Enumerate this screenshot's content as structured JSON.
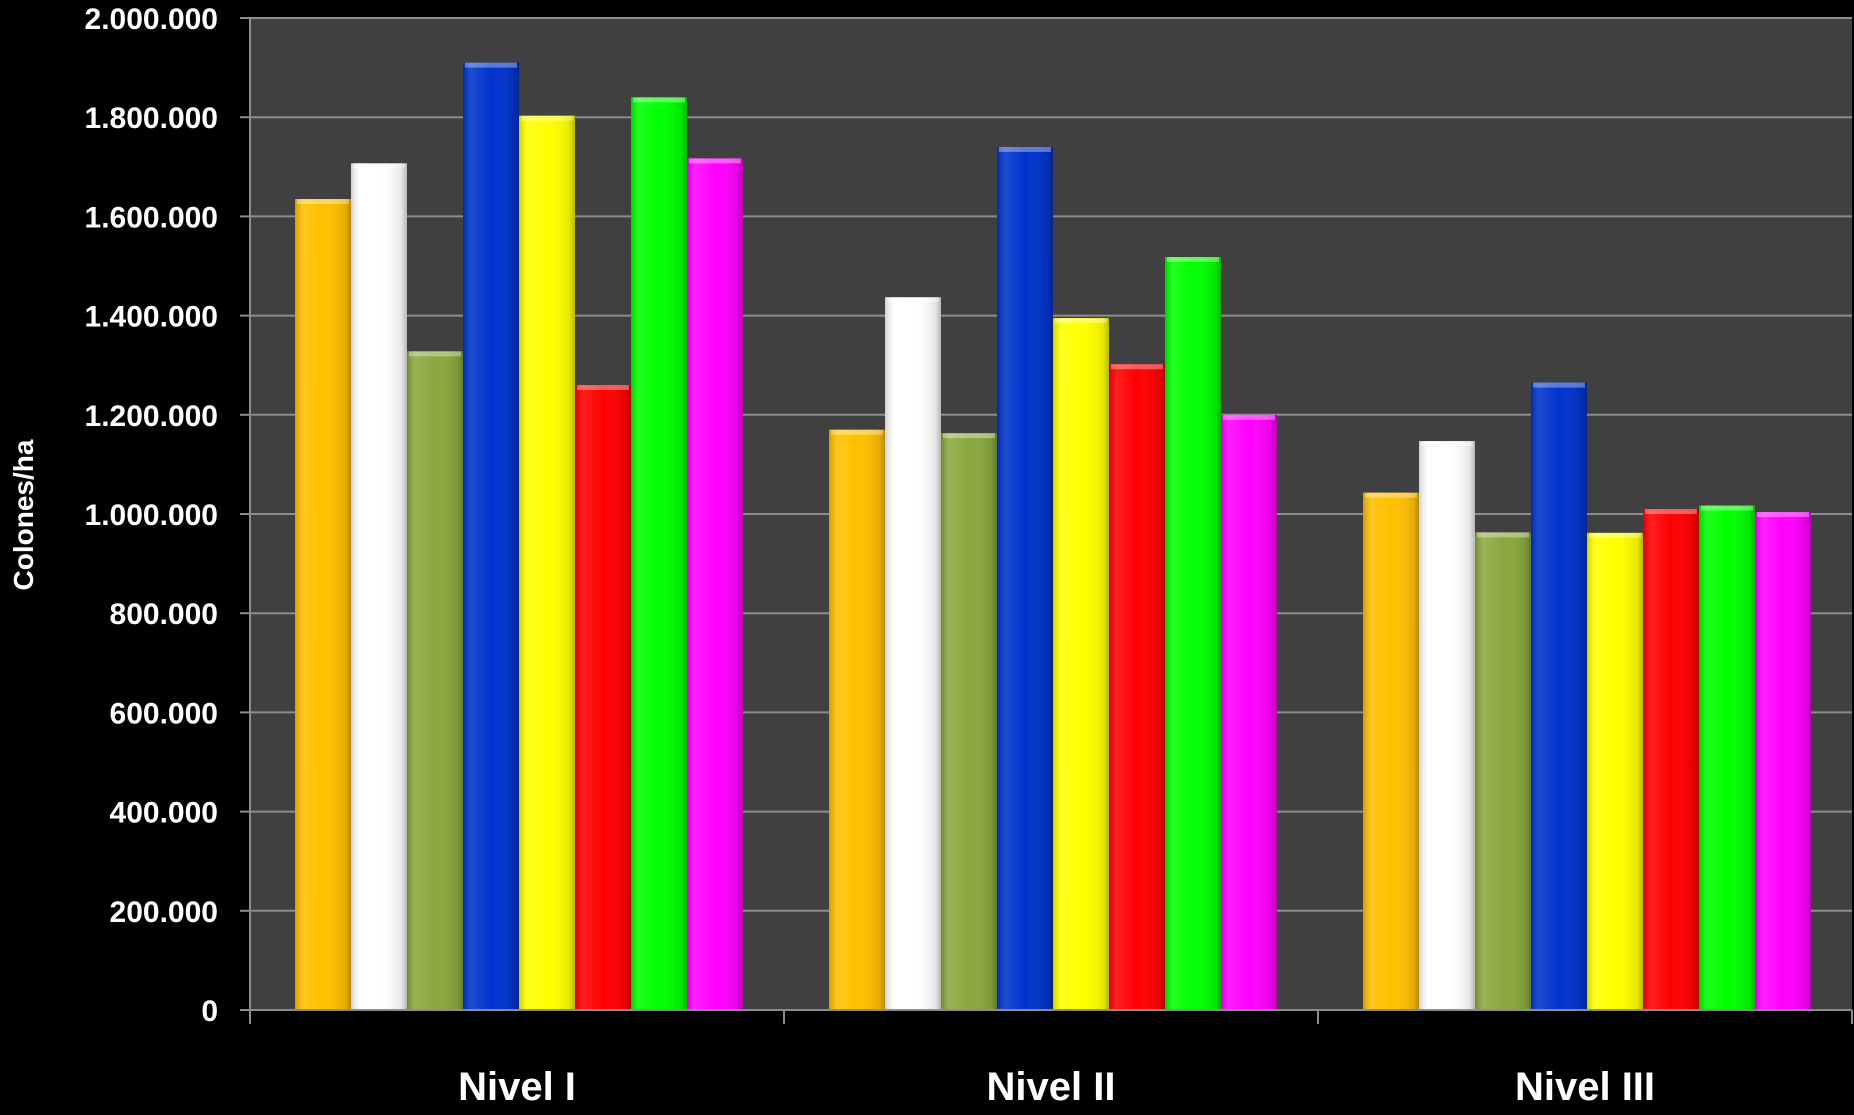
{
  "chart_data": {
    "type": "bar",
    "title": "",
    "xlabel": "",
    "ylabel": "Colones/ha",
    "ylim": [
      0,
      2000000
    ],
    "yticks": [
      0,
      200000,
      400000,
      600000,
      800000,
      1000000,
      1200000,
      1400000,
      1600000,
      1800000,
      2000000
    ],
    "ytick_labels": [
      "0",
      "200.000",
      "400.000",
      "600.000",
      "800.000",
      "1.000.000",
      "1.200.000",
      "1.400.000",
      "1.600.000",
      "1.800.000",
      "2.000.000"
    ],
    "grid": true,
    "legend": "none",
    "categories": [
      "Nivel I",
      "Nivel II",
      "Nivel III"
    ],
    "series": [
      {
        "color": "#FFC000",
        "values": [
          1635000,
          1170000,
          1043000
        ]
      },
      {
        "color": "#FFFFFF",
        "values": [
          1707000,
          1437000,
          1147000
        ]
      },
      {
        "color": "#8BA83E",
        "values": [
          1328000,
          1163000,
          963000
        ]
      },
      {
        "color": "#0033CC",
        "values": [
          1910000,
          1740000,
          1265000
        ]
      },
      {
        "color": "#FFFF00",
        "values": [
          1803000,
          1395000,
          962000
        ]
      },
      {
        "color": "#FF0000",
        "values": [
          1260000,
          1302000,
          1010000
        ]
      },
      {
        "color": "#00FF00",
        "values": [
          1840000,
          1518000,
          1017000
        ]
      },
      {
        "color": "#FF00FF",
        "values": [
          1717000,
          1200000,
          1004000
        ]
      }
    ],
    "colors": {
      "background": "#000000",
      "plot_area": "#404040",
      "gridline": "#8C8C8C",
      "text": "#FFFFFF"
    }
  }
}
